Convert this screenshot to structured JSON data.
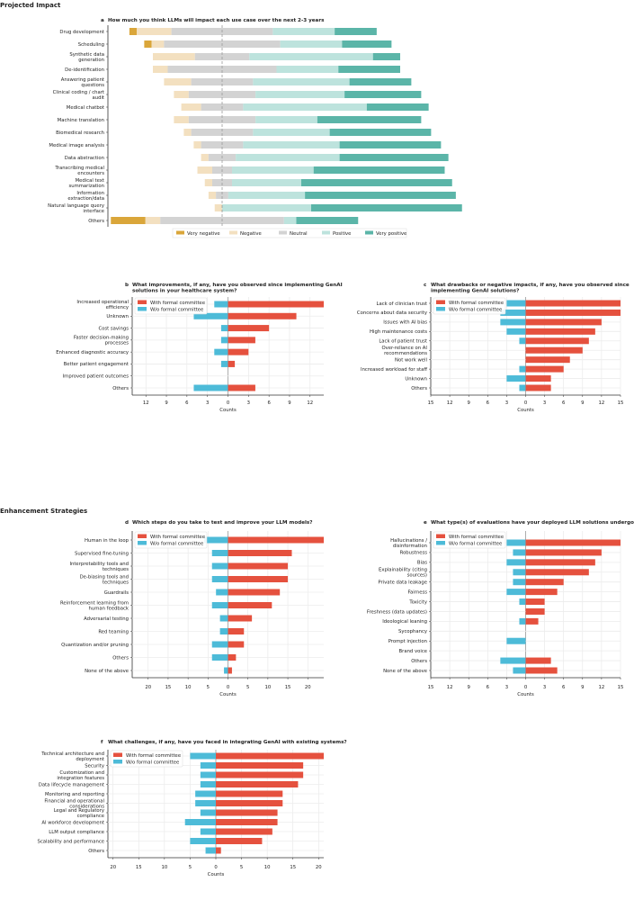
{
  "sections": {
    "projected": "Projected Impact",
    "enhancement": "Enhancement Strategies"
  },
  "colors": {
    "very_negative": "#DAA63A",
    "negative": "#F3E0C0",
    "neutral": "#D3D3D3",
    "positive": "#BDE3DD",
    "very_positive": "#5BB5A8",
    "with": "#E5513E",
    "without": "#4DBBD8"
  },
  "chart_data": [
    {
      "id": "a",
      "type": "bar",
      "orientation": "horizontal-diverging-stacked",
      "title": "How much you think LLMs will impact each use case over the next 2-3 years",
      "unit": "percent of respondents (estimated)",
      "legend": [
        "Very negative",
        "Negative",
        "Neutral",
        "Positive",
        "Very positive"
      ],
      "legend_placement": "bottom",
      "categories": [
        "Drug development",
        "Scheduling",
        "Synthetic data generation",
        "De-identification",
        "Answering patient questions",
        "Clinical coding / chart audit",
        "Medical chatbot",
        "Machine translation",
        "Biomedical research",
        "Medical image analysis",
        "Data abstraction",
        "Transcribing medical encounters",
        "Medical text summarization",
        "Information extraction/data",
        "Natural language query interface",
        "Others"
      ],
      "series": [
        {
          "name": "Very negative",
          "values": [
            3,
            3,
            0,
            0,
            0,
            0,
            0,
            0,
            0,
            0,
            0,
            0,
            0,
            0,
            0,
            14
          ]
        },
        {
          "name": "Negative",
          "values": [
            14,
            5,
            17,
            6,
            11,
            6,
            8,
            6,
            3,
            3,
            3,
            6,
            3,
            3,
            3,
            6
          ]
        },
        {
          "name": "Neutral",
          "values": [
            41,
            47,
            22,
            44,
            25,
            27,
            17,
            27,
            25,
            17,
            11,
            8,
            8,
            5,
            0,
            50
          ]
        },
        {
          "name": "Positive",
          "values": [
            25,
            25,
            50,
            25,
            39,
            36,
            50,
            25,
            31,
            39,
            42,
            33,
            28,
            31,
            36,
            5
          ]
        },
        {
          "name": "Very positive",
          "values": [
            17,
            20,
            11,
            25,
            25,
            31,
            25,
            42,
            41,
            41,
            44,
            53,
            61,
            61,
            61,
            25
          ]
        }
      ]
    },
    {
      "id": "b",
      "type": "bar",
      "orientation": "horizontal-diverging",
      "title": "What improvements, if any, have you observed since implementing GenAI solutions in your healthcare system?",
      "xlabel": "Counts",
      "xlim": [
        -14,
        14
      ],
      "xticks": [
        -12,
        -9,
        -6,
        -3,
        0,
        3,
        6,
        9,
        12
      ],
      "legend": [
        "With formal committee",
        "W/o formal committee"
      ],
      "legend_placement": "top-left",
      "categories": [
        "Increased operational efficiency",
        "Unknown",
        "Cost savings",
        "Faster decision-making processes",
        "Enhanced diagnostic accuracy",
        "Better patient engagement",
        "Improved patient outcomes",
        "Others"
      ],
      "series": [
        {
          "name": "With formal committee",
          "values": [
            14,
            10,
            6,
            4,
            3,
            1,
            0,
            4
          ]
        },
        {
          "name": "W/o formal committee",
          "values": [
            2,
            5,
            1,
            1,
            2,
            1,
            0,
            5
          ]
        }
      ]
    },
    {
      "id": "c",
      "type": "bar",
      "orientation": "horizontal-diverging",
      "title": "What drawbacks or negative impacts, if any, have you observed since implementing GenAI solutions?",
      "xlabel": "Counts",
      "xlim": [
        -15,
        15
      ],
      "xticks": [
        -15,
        -12,
        -9,
        -6,
        -3,
        0,
        3,
        6,
        9,
        12,
        15
      ],
      "legend": [
        "With formal committee",
        "W/o formal committee"
      ],
      "legend_placement": "top-left",
      "categories": [
        "Lack of clinician trust",
        "Concerns about data security",
        "Issues with AI bias",
        "High maintenance costs",
        "Lack of patient trust",
        "Over-reliance on AI recommendations",
        "Not work well",
        "Increased workload for staff",
        "Unknown",
        "Others"
      ],
      "series": [
        {
          "name": "With formal committee",
          "values": [
            15,
            15,
            12,
            11,
            10,
            9,
            7,
            6,
            4,
            4
          ]
        },
        {
          "name": "W/o formal committee",
          "values": [
            3,
            4,
            4,
            3,
            1,
            0,
            0,
            1,
            3,
            1
          ]
        }
      ]
    },
    {
      "id": "d",
      "type": "bar",
      "orientation": "horizontal-diverging",
      "title": "Which steps do you take to test and improve your LLM models?",
      "xlabel": "Counts",
      "xlim": [
        -24,
        24
      ],
      "xticks": [
        -20,
        -15,
        -10,
        -5,
        0,
        5,
        10,
        15,
        20
      ],
      "legend": [
        "With formal committee",
        "W/o formal committee"
      ],
      "legend_placement": "top-left",
      "categories": [
        "Human in the loop",
        "Supervised fine-tuning",
        "Interpretability tools and techniques",
        "De-biasing tools and techniques",
        "Guardrails",
        "Reinforcement learning from human feedback",
        "Adversarial testing",
        "Red teaming",
        "Quantization and/or pruning",
        "Others",
        "None of the above"
      ],
      "series": [
        {
          "name": "With formal committee",
          "values": [
            24,
            16,
            15,
            15,
            13,
            11,
            6,
            4,
            4,
            2,
            1
          ]
        },
        {
          "name": "W/o formal committee",
          "values": [
            6,
            4,
            4,
            4,
            3,
            4,
            2,
            2,
            4,
            4,
            1
          ]
        }
      ]
    },
    {
      "id": "e",
      "type": "bar",
      "orientation": "horizontal-diverging",
      "title": "What type(s) of evaluations have your deployed LLM solutions undergone?",
      "xlabel": "Counts",
      "xlim": [
        -15,
        15
      ],
      "xticks": [
        -15,
        -12,
        -9,
        -6,
        -3,
        0,
        3,
        6,
        9,
        12,
        15
      ],
      "legend": [
        "With formal committee",
        "W/o formal committee"
      ],
      "legend_placement": "top-left",
      "categories": [
        "Hallucinations / disinformation",
        "Robustness",
        "Bias",
        "Explainability (citing sources)",
        "Private data leakage",
        "Fairness",
        "Toxicity",
        "Freshness (data updates)",
        "Ideological leaning",
        "Sycophancy",
        "Prompt injection",
        "Brand voice",
        "Others",
        "None of the above"
      ],
      "series": [
        {
          "name": "With formal committee",
          "values": [
            15,
            12,
            11,
            10,
            6,
            5,
            3,
            3,
            2,
            0,
            0,
            0,
            4,
            5
          ]
        },
        {
          "name": "W/o formal committee",
          "values": [
            3,
            2,
            3,
            2,
            2,
            3,
            1,
            0,
            1,
            0,
            3,
            0,
            4,
            2
          ]
        }
      ]
    },
    {
      "id": "f",
      "type": "bar",
      "orientation": "horizontal-diverging",
      "title": "What challenges, if any, have you faced in integrating GenAI with existing systems?",
      "xlabel": "Counts",
      "xlim": [
        -21,
        21
      ],
      "xticks": [
        -20,
        -15,
        -10,
        -5,
        0,
        5,
        10,
        15,
        20
      ],
      "legend": [
        "With formal committee",
        "W/o formal committee"
      ],
      "legend_placement": "top-left",
      "categories": [
        "Technical architecture and deployment",
        "Security",
        "Customization and integration features",
        "Data lifecycle management",
        "Monitoring and reporting",
        "Financial and operational considerations",
        "Legal and Regulatory compliance",
        "AI workforce development",
        "LLM output compliance",
        "Scalability and performance",
        "Others"
      ],
      "series": [
        {
          "name": "With formal committee",
          "values": [
            21,
            17,
            17,
            16,
            13,
            13,
            12,
            12,
            11,
            9,
            1
          ]
        },
        {
          "name": "W/o formal committee",
          "values": [
            5,
            3,
            3,
            3,
            4,
            4,
            3,
            6,
            3,
            5,
            2
          ]
        }
      ]
    }
  ]
}
